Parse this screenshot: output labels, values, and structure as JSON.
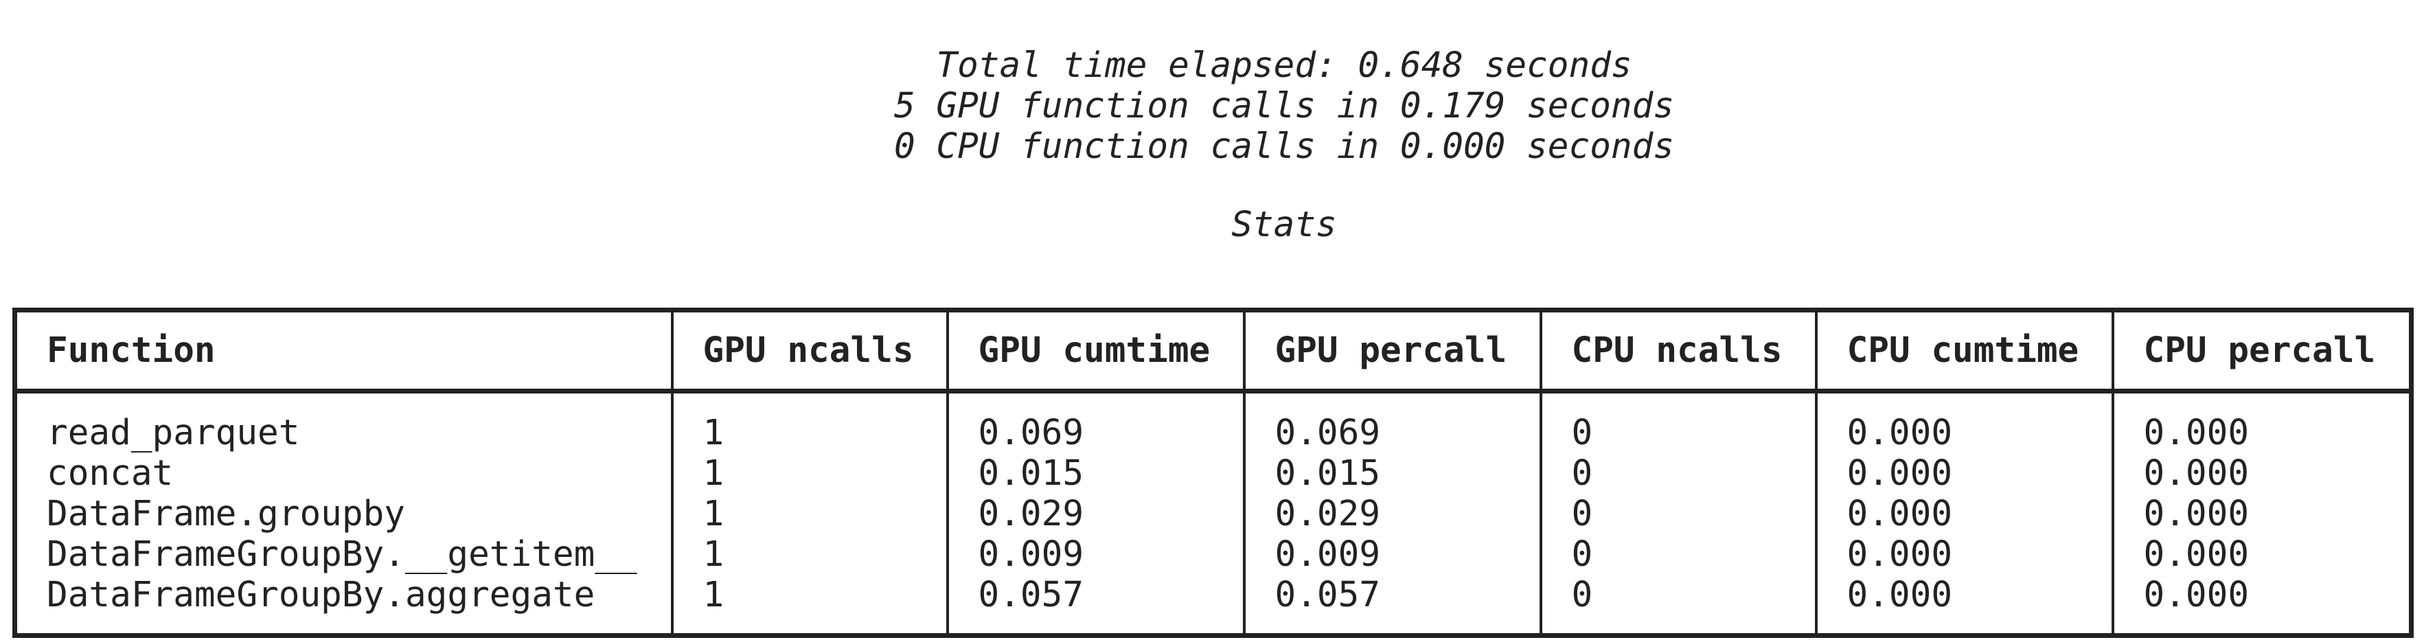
{
  "summary": {
    "total": "Total time elapsed: 0.648 seconds",
    "gpu": "5 GPU function calls in 0.179 seconds",
    "cpu": "0 CPU function calls in 0.000 seconds"
  },
  "stats_title": "Stats",
  "table": {
    "columns": [
      "Function",
      "GPU ncalls",
      "GPU cumtime",
      "GPU percall",
      "CPU ncalls",
      "CPU cumtime",
      "CPU percall"
    ],
    "rows": [
      [
        "read_parquet",
        "1",
        "0.069",
        "0.069",
        "0",
        "0.000",
        "0.000"
      ],
      [
        "concat",
        "1",
        "0.015",
        "0.015",
        "0",
        "0.000",
        "0.000"
      ],
      [
        "DataFrame.groupby",
        "1",
        "0.029",
        "0.029",
        "0",
        "0.000",
        "0.000"
      ],
      [
        "DataFrameGroupBy.__getitem__",
        "1",
        "0.009",
        "0.009",
        "0",
        "0.000",
        "0.000"
      ],
      [
        "DataFrameGroupBy.aggregate",
        "1",
        "0.057",
        "0.057",
        "0",
        "0.000",
        "0.000"
      ]
    ]
  }
}
